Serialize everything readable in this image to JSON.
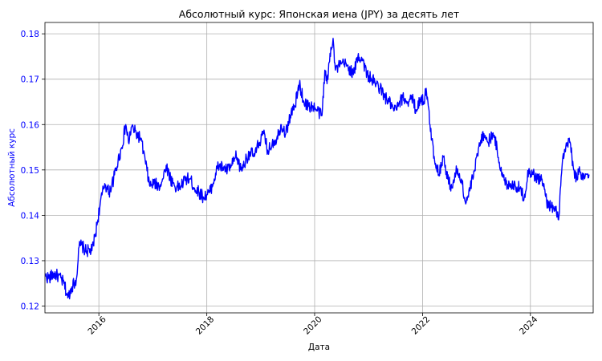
{
  "chart_data": {
    "type": "line",
    "title": "Абсолютный курс: Японская иена (JPY) за десять лет",
    "xlabel": "Дата",
    "ylabel": "Абсолютный курс",
    "x_range": [
      "2015-01-01",
      "2025-03-01"
    ],
    "ylim": [
      0.1185,
      0.1825
    ],
    "x_ticks": [
      {
        "date": "2016-01-01",
        "label": "2016"
      },
      {
        "date": "2018-01-01",
        "label": "2018"
      },
      {
        "date": "2020-01-01",
        "label": "2020"
      },
      {
        "date": "2022-01-01",
        "label": "2022"
      },
      {
        "date": "2024-01-01",
        "label": "2024"
      }
    ],
    "y_ticks": [
      {
        "value": 0.12,
        "label": "0.12"
      },
      {
        "value": 0.13,
        "label": "0.13"
      },
      {
        "value": 0.14,
        "label": "0.14"
      },
      {
        "value": 0.15,
        "label": "0.15"
      },
      {
        "value": 0.16,
        "label": "0.16"
      },
      {
        "value": 0.17,
        "label": "0.17"
      },
      {
        "value": 0.18,
        "label": "0.18"
      }
    ],
    "grid": true,
    "series": [
      {
        "color": "#0000ff",
        "points": [
          [
            "2015-01-05",
            0.1265
          ],
          [
            "2015-02-01",
            0.1262
          ],
          [
            "2015-03-01",
            0.1271
          ],
          [
            "2015-04-01",
            0.1266
          ],
          [
            "2015-05-10",
            0.125
          ],
          [
            "2015-06-05",
            0.1218
          ],
          [
            "2015-07-01",
            0.1242
          ],
          [
            "2015-08-01",
            0.1258
          ],
          [
            "2015-08-20",
            0.133
          ],
          [
            "2015-09-05",
            0.1335
          ],
          [
            "2015-10-01",
            0.1322
          ],
          [
            "2015-11-15",
            0.1322
          ],
          [
            "2015-12-10",
            0.136
          ],
          [
            "2016-01-10",
            0.1425
          ],
          [
            "2016-02-10",
            0.147
          ],
          [
            "2016-03-10",
            0.145
          ],
          [
            "2016-04-10",
            0.148
          ],
          [
            "2016-05-10",
            0.152
          ],
          [
            "2016-06-05",
            0.155
          ],
          [
            "2016-07-01",
            0.16
          ],
          [
            "2016-07-20",
            0.156
          ],
          [
            "2016-08-10",
            0.1595
          ],
          [
            "2016-09-10",
            0.158
          ],
          [
            "2016-10-10",
            0.157
          ],
          [
            "2016-11-10",
            0.152
          ],
          [
            "2016-12-10",
            0.1465
          ],
          [
            "2017-01-10",
            0.147
          ],
          [
            "2017-02-10",
            0.1465
          ],
          [
            "2017-03-10",
            0.148
          ],
          [
            "2017-04-01",
            0.151
          ],
          [
            "2017-05-01",
            0.148
          ],
          [
            "2017-06-10",
            0.146
          ],
          [
            "2017-07-10",
            0.1465
          ],
          [
            "2017-08-10",
            0.148
          ],
          [
            "2017-09-10",
            0.148
          ],
          [
            "2017-10-10",
            0.146
          ],
          [
            "2017-11-10",
            0.145
          ],
          [
            "2017-12-10",
            0.144
          ],
          [
            "2018-01-20",
            0.145
          ],
          [
            "2018-02-20",
            0.148
          ],
          [
            "2018-03-20",
            0.151
          ],
          [
            "2018-04-20",
            0.1505
          ],
          [
            "2018-05-20",
            0.15
          ],
          [
            "2018-06-20",
            0.151
          ],
          [
            "2018-07-20",
            0.153
          ],
          [
            "2018-08-20",
            0.15
          ],
          [
            "2018-09-20",
            0.152
          ],
          [
            "2018-10-20",
            0.154
          ],
          [
            "2018-11-20",
            0.153
          ],
          [
            "2018-12-20",
            0.156
          ],
          [
            "2019-01-20",
            0.158
          ],
          [
            "2019-02-20",
            0.154
          ],
          [
            "2019-03-20",
            0.156
          ],
          [
            "2019-04-20",
            0.157
          ],
          [
            "2019-05-20",
            0.16
          ],
          [
            "2019-06-20",
            0.158
          ],
          [
            "2019-07-20",
            0.162
          ],
          [
            "2019-08-20",
            0.164
          ],
          [
            "2019-09-20",
            0.169
          ],
          [
            "2019-10-20",
            0.165
          ],
          [
            "2019-11-20",
            0.164
          ],
          [
            "2019-12-20",
            0.164
          ],
          [
            "2020-01-20",
            0.163
          ],
          [
            "2020-02-20",
            0.162
          ],
          [
            "2020-03-10",
            0.172
          ],
          [
            "2020-03-25",
            0.169
          ],
          [
            "2020-04-20",
            0.177
          ],
          [
            "2020-05-05",
            0.179
          ],
          [
            "2020-05-20",
            0.172
          ],
          [
            "2020-06-20",
            0.173
          ],
          [
            "2020-07-20",
            0.1735
          ],
          [
            "2020-08-20",
            0.1725
          ],
          [
            "2020-09-20",
            0.171
          ],
          [
            "2020-10-20",
            0.175
          ],
          [
            "2020-11-20",
            0.1745
          ],
          [
            "2020-12-20",
            0.171
          ],
          [
            "2021-01-20",
            0.17
          ],
          [
            "2021-02-20",
            0.169
          ],
          [
            "2021-03-20",
            0.168
          ],
          [
            "2021-04-20",
            0.166
          ],
          [
            "2021-05-20",
            0.165
          ],
          [
            "2021-06-20",
            0.163
          ],
          [
            "2021-07-20",
            0.164
          ],
          [
            "2021-08-20",
            0.166
          ],
          [
            "2021-09-20",
            0.165
          ],
          [
            "2021-10-20",
            0.166
          ],
          [
            "2021-11-20",
            0.163
          ],
          [
            "2021-12-20",
            0.166
          ],
          [
            "2022-01-10",
            0.165
          ],
          [
            "2022-01-25",
            0.168
          ],
          [
            "2022-02-20",
            0.16
          ],
          [
            "2022-03-20",
            0.153
          ],
          [
            "2022-04-20",
            0.149
          ],
          [
            "2022-05-20",
            0.153
          ],
          [
            "2022-06-20",
            0.148
          ],
          [
            "2022-07-20",
            0.146
          ],
          [
            "2022-08-20",
            0.15
          ],
          [
            "2022-09-20",
            0.148
          ],
          [
            "2022-10-20",
            0.1425
          ],
          [
            "2022-11-20",
            0.146
          ],
          [
            "2022-12-20",
            0.15
          ],
          [
            "2023-01-20",
            0.156
          ],
          [
            "2023-02-20",
            0.158
          ],
          [
            "2023-03-20",
            0.156
          ],
          [
            "2023-04-20",
            0.158
          ],
          [
            "2023-05-20",
            0.155
          ],
          [
            "2023-06-20",
            0.149
          ],
          [
            "2023-07-20",
            0.147
          ],
          [
            "2023-08-20",
            0.147
          ],
          [
            "2023-09-20",
            0.1465
          ],
          [
            "2023-10-20",
            0.146
          ],
          [
            "2023-11-20",
            0.144
          ],
          [
            "2023-12-20",
            0.15
          ],
          [
            "2024-01-20",
            0.149
          ],
          [
            "2024-02-20",
            0.148
          ],
          [
            "2024-03-20",
            0.148
          ],
          [
            "2024-04-20",
            0.143
          ],
          [
            "2024-05-20",
            0.142
          ],
          [
            "2024-06-20",
            0.141
          ],
          [
            "2024-07-10",
            0.139
          ],
          [
            "2024-08-05",
            0.152
          ],
          [
            "2024-08-25",
            0.154
          ],
          [
            "2024-09-20",
            0.157
          ],
          [
            "2024-10-20",
            0.15
          ],
          [
            "2024-11-10",
            0.148
          ],
          [
            "2024-11-25",
            0.15
          ],
          [
            "2024-12-10",
            0.148
          ],
          [
            "2025-01-05",
            0.1485
          ],
          [
            "2025-01-20",
            0.149
          ],
          [
            "2025-02-01",
            0.149
          ]
        ]
      }
    ]
  }
}
